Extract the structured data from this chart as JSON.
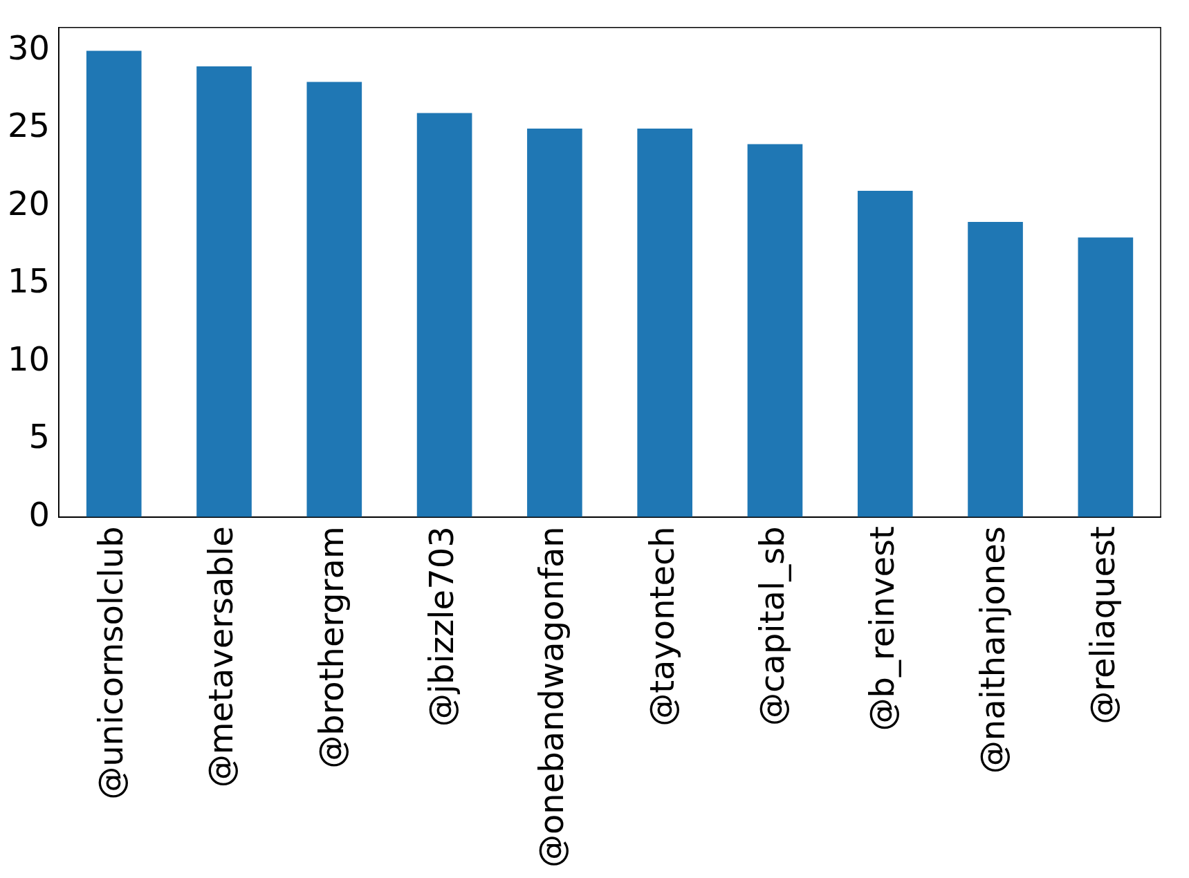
{
  "chart_data": {
    "type": "bar",
    "categories": [
      "@unicornsolclub",
      "@metaversable",
      "@brothergram",
      "@jbizzle703",
      "@onebandwagonfan",
      "@tayontech",
      "@capital_sb",
      "@b_reinvest",
      "@naithanjones",
      "@reliaquest"
    ],
    "values": [
      30,
      29,
      28,
      26,
      25,
      25,
      24,
      21,
      19,
      18
    ],
    "color": "#1f77b4",
    "ylim": [
      0,
      31.5
    ],
    "yticks": [
      0,
      5,
      10,
      15,
      20,
      25,
      30
    ],
    "grid": false,
    "legend": false
  }
}
